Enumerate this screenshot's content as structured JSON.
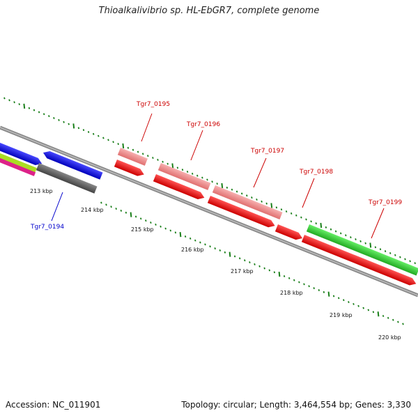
{
  "title": "Thioalkalivibrio sp. HL-EbGR7, complete genome",
  "footer": {
    "accession": "Accession: NC_011901",
    "summary": "Topology: circular; Length: 3,464,554 bp; Genes: 3,330"
  },
  "colors": {
    "backbone": "#8a8a8a",
    "tick": "#1a7f1a",
    "label_red": "#cc0000",
    "label_blue": "#0000cc",
    "gene_red": "#ee1111",
    "gene_pink": "#ee8888",
    "gene_blue": "#1111ee",
    "gene_green": "#33cc33",
    "gene_gray": "#666666",
    "gene_lime": "#aadd22",
    "gene_magenta": "#dd2288"
  },
  "scale_labels": [
    "213 kbp",
    "214 kbp",
    "215 kbp",
    "216 kbp",
    "217 kbp",
    "218 kbp",
    "219 kbp",
    "220 kbp"
  ],
  "gene_labels": [
    {
      "text": "Tgr7_0194",
      "color": "blue"
    },
    {
      "text": "Tgr7_0195",
      "color": "red"
    },
    {
      "text": "Tgr7_0196",
      "color": "red"
    },
    {
      "text": "Tgr7_0197",
      "color": "red"
    },
    {
      "text": "Tgr7_0198",
      "color": "red"
    },
    {
      "text": "Tgr7_0199",
      "color": "red"
    }
  ]
}
